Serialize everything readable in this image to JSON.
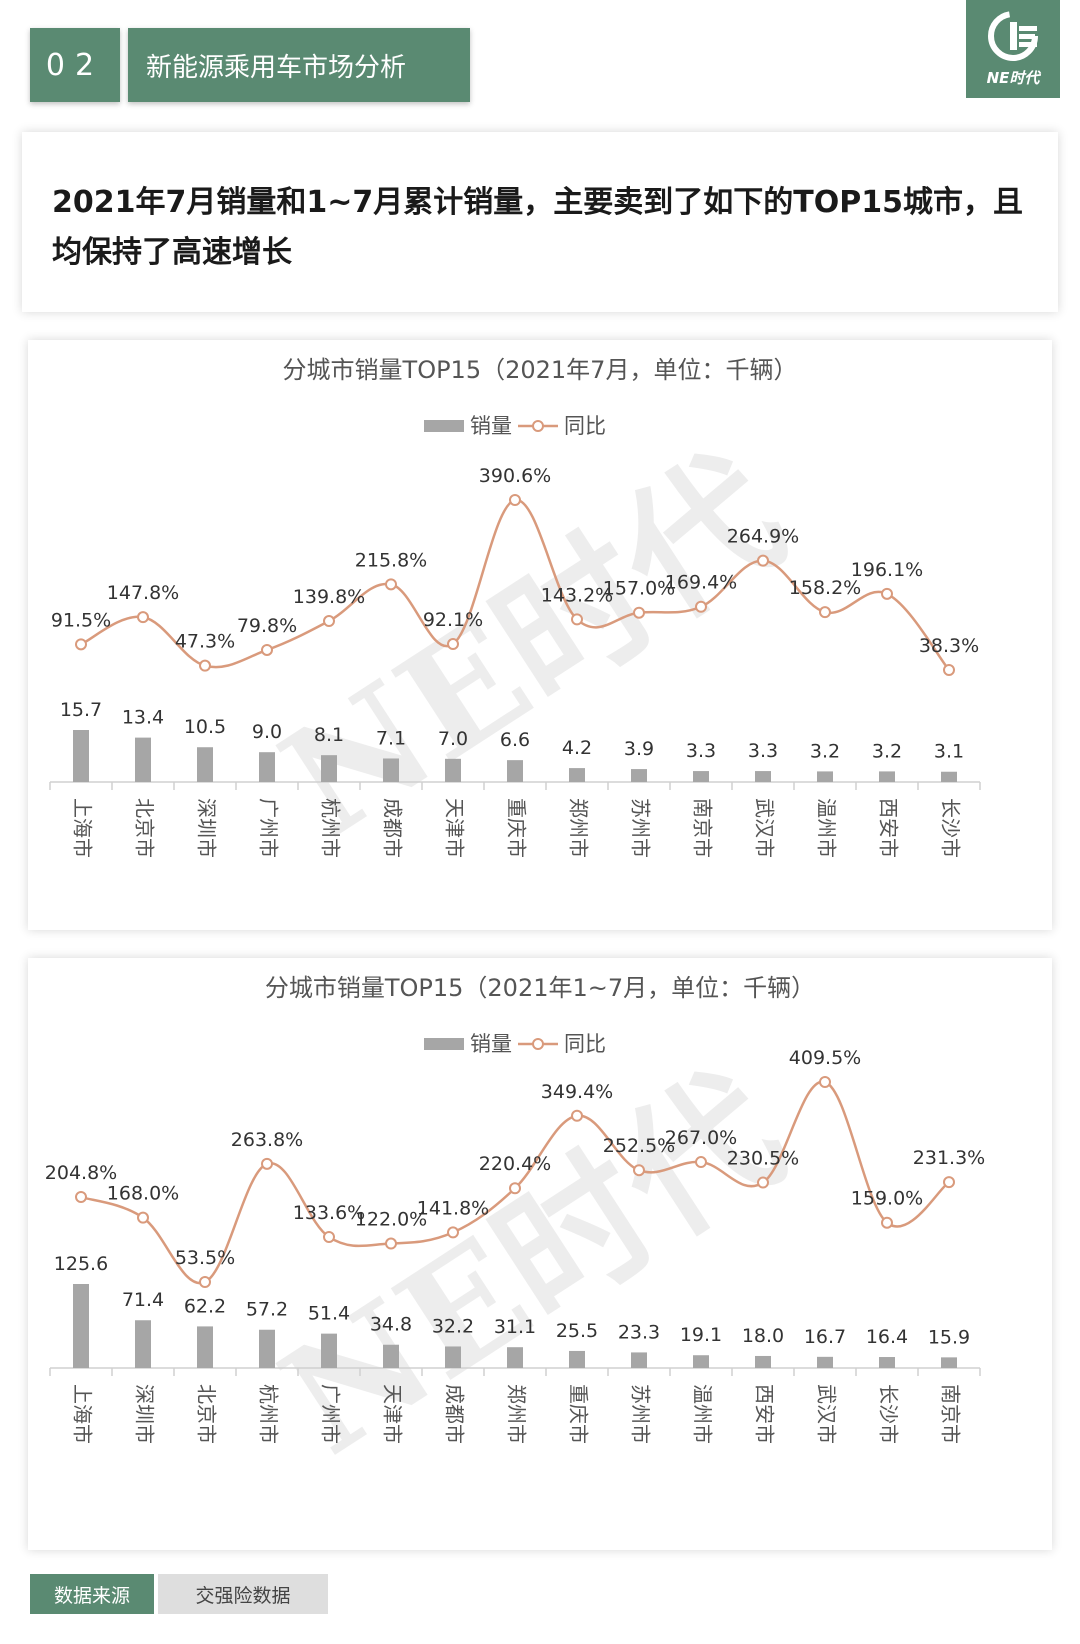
{
  "header": {
    "section_number": "02",
    "section_title": "新能源乘用车市场分析",
    "logo_text": "NE时代"
  },
  "headline": "2021年7月销量和1~7月累计销量，主要卖到了如下的TOP15城市，且均保持了高速增长",
  "watermark": "NE时代",
  "colors": {
    "accent": "#5a8a72",
    "bar": "#a6a6a6",
    "line": "#d99a7c"
  },
  "chart_data": [
    {
      "type": "bar",
      "title": "分城市销量TOP15（2021年7月，单位：千辆）",
      "legend": [
        "销量",
        "同比"
      ],
      "legend_position": "top",
      "categories": [
        "上海市",
        "北京市",
        "深圳市",
        "广州市",
        "杭州市",
        "成都市",
        "天津市",
        "重庆市",
        "郑州市",
        "苏州市",
        "南京市",
        "武汉市",
        "温州市",
        "西安市",
        "长沙市"
      ],
      "series": [
        {
          "name": "销量",
          "type": "bar",
          "values": [
            15.7,
            13.4,
            10.5,
            9.0,
            8.1,
            7.1,
            7.0,
            6.6,
            4.2,
            3.9,
            3.3,
            3.3,
            3.2,
            3.2,
            3.1
          ],
          "labels": [
            "15.7",
            "13.4",
            "10.5",
            "9.0",
            "8.1",
            "7.1",
            "7.0",
            "6.6",
            "4.2",
            "3.9",
            "3.3",
            "3.3",
            "3.2",
            "3.2",
            "3.1"
          ]
        },
        {
          "name": "同比",
          "type": "line",
          "values": [
            91.5,
            147.8,
            47.3,
            79.8,
            139.8,
            215.8,
            92.1,
            390.6,
            143.2,
            157.0,
            169.4,
            264.9,
            158.2,
            196.1,
            38.3
          ],
          "labels": [
            "91.5%",
            "147.8%",
            "47.3%",
            "79.8%",
            "139.8%",
            "215.8%",
            "92.1%",
            "390.6%",
            "143.2%",
            "157.0%",
            "169.4%",
            "264.9%",
            "158.2%",
            "196.1%",
            "38.3%"
          ]
        }
      ],
      "grid": false
    },
    {
      "type": "bar",
      "title": "分城市销量TOP15（2021年1~7月，单位：千辆）",
      "legend": [
        "销量",
        "同比"
      ],
      "legend_position": "top",
      "categories": [
        "上海市",
        "深圳市",
        "北京市",
        "杭州市",
        "广州市",
        "天津市",
        "成都市",
        "郑州市",
        "重庆市",
        "苏州市",
        "温州市",
        "西安市",
        "武汉市",
        "长沙市",
        "南京市"
      ],
      "series": [
        {
          "name": "销量",
          "type": "bar",
          "values": [
            125.6,
            71.4,
            62.2,
            57.2,
            51.4,
            34.8,
            32.2,
            31.1,
            25.5,
            23.3,
            19.1,
            18.0,
            16.7,
            16.4,
            15.9
          ],
          "labels": [
            "125.6",
            "71.4",
            "62.2",
            "57.2",
            "51.4",
            "34.8",
            "32.2",
            "31.1",
            "25.5",
            "23.3",
            "19.1",
            "18.0",
            "16.7",
            "16.4",
            "15.9"
          ]
        },
        {
          "name": "同比",
          "type": "line",
          "values": [
            204.8,
            168.0,
            53.5,
            263.8,
            133.6,
            122.0,
            141.8,
            220.4,
            349.4,
            252.5,
            267.0,
            230.5,
            409.5,
            159.0,
            231.3
          ],
          "labels": [
            "204.8%",
            "168.0%",
            "53.5%",
            "263.8%",
            "133.6%",
            "122.0%",
            "141.8%",
            "220.4%",
            "349.4%",
            "252.5%",
            "267.0%",
            "230.5%",
            "409.5%",
            "159.0%",
            "231.3%"
          ]
        }
      ],
      "grid": false
    }
  ],
  "footer": {
    "source_label": "数据来源",
    "source_value": "交强险数据"
  }
}
